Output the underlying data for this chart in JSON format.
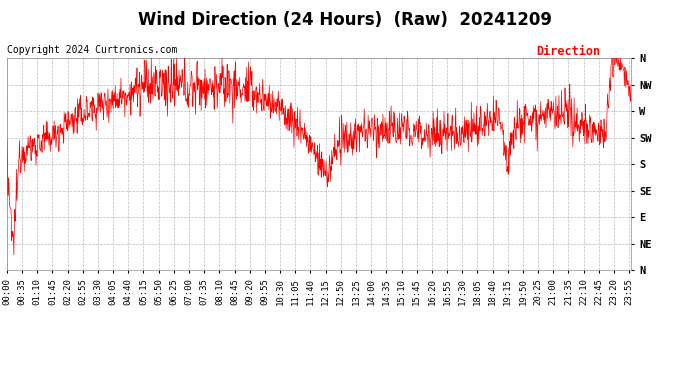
{
  "title": "Wind Direction (24 Hours)  (Raw)  20241209",
  "copyright": "Copyright 2024 Curtronics.com",
  "legend_label": "Direction",
  "legend_color": "#ff0000",
  "line_color": "#ff0000",
  "background_color": "#ffffff",
  "grid_color": "#bbbbbb",
  "ytick_labels": [
    "N",
    "NW",
    "W",
    "SW",
    "S",
    "SE",
    "E",
    "NE",
    "N"
  ],
  "ytick_values": [
    360,
    315,
    270,
    225,
    180,
    135,
    90,
    45,
    0
  ],
  "ylim": [
    0,
    360
  ],
  "title_fontsize": 12,
  "axis_fontsize": 7.5,
  "copyright_fontsize": 7
}
